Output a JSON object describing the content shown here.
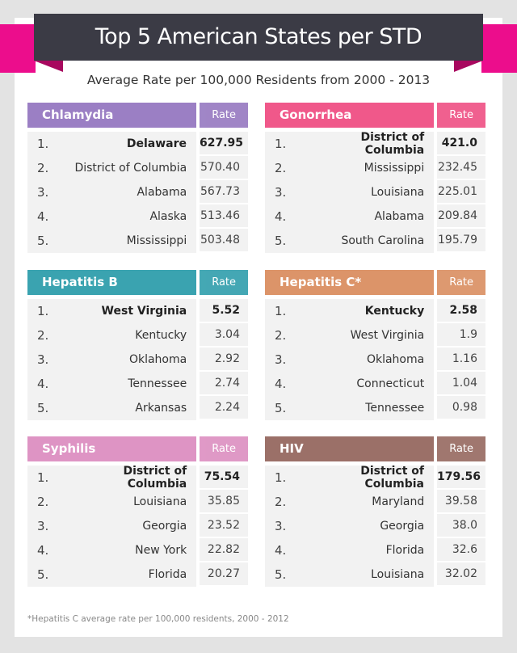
{
  "title": "Top 5 American States per STD",
  "subtitle": "Average Rate per 100,000 Residents from 2000 - 2013",
  "footnote": "*Hepatitis C average rate per 100,000 residents, 2000 - 2012",
  "colors": {
    "banner": "#3b3b45",
    "ribbon": "#ec0d8c",
    "row_bg": "#f2f2f2"
  },
  "chart_data": {
    "type": "table",
    "title": "Top 5 American States per STD",
    "subtitle": "Average Rate per 100,000 Residents from 2000 - 2013",
    "tables": [
      {
        "name": "Chlamydia",
        "rate_label": "Rate",
        "color": "#9b7fc4",
        "rows": [
          {
            "rank": "1.",
            "state": "Delaware",
            "rate": "627.95"
          },
          {
            "rank": "2.",
            "state": "District of Columbia",
            "rate": "570.40"
          },
          {
            "rank": "3.",
            "state": "Alabama",
            "rate": "567.73"
          },
          {
            "rank": "4.",
            "state": "Alaska",
            "rate": "513.46"
          },
          {
            "rank": "5.",
            "state": "Mississippi",
            "rate": "503.48"
          }
        ]
      },
      {
        "name": "Gonorrhea",
        "rate_label": "Rate",
        "color": "#f0588a",
        "rows": [
          {
            "rank": "1.",
            "state": "District of Columbia",
            "rate": "421.0"
          },
          {
            "rank": "2.",
            "state": "Mississippi",
            "rate": "232.45"
          },
          {
            "rank": "3.",
            "state": "Louisiana",
            "rate": "225.01"
          },
          {
            "rank": "4.",
            "state": "Alabama",
            "rate": "209.84"
          },
          {
            "rank": "5.",
            "state": "South Carolina",
            "rate": "195.79"
          }
        ]
      },
      {
        "name": "Hepatitis B",
        "rate_label": "Rate",
        "color": "#3aa3b0",
        "rows": [
          {
            "rank": "1.",
            "state": "West Virginia",
            "rate": "5.52"
          },
          {
            "rank": "2.",
            "state": "Kentucky",
            "rate": "3.04"
          },
          {
            "rank": "3.",
            "state": "Oklahoma",
            "rate": "2.92"
          },
          {
            "rank": "4.",
            "state": "Tennessee",
            "rate": "2.74"
          },
          {
            "rank": "5.",
            "state": "Arkansas",
            "rate": "2.24"
          }
        ]
      },
      {
        "name": "Hepatitis C*",
        "rate_label": "Rate",
        "color": "#dc9469",
        "rows": [
          {
            "rank": "1.",
            "state": "Kentucky",
            "rate": "2.58"
          },
          {
            "rank": "2.",
            "state": "West Virginia",
            "rate": "1.9"
          },
          {
            "rank": "3.",
            "state": "Oklahoma",
            "rate": "1.16"
          },
          {
            "rank": "4.",
            "state": "Connecticut",
            "rate": "1.04"
          },
          {
            "rank": "5.",
            "state": "Tennessee",
            "rate": "0.98"
          }
        ]
      },
      {
        "name": "Syphilis",
        "rate_label": "Rate",
        "color": "#de94c4",
        "rows": [
          {
            "rank": "1.",
            "state": "District of Columbia",
            "rate": "75.54"
          },
          {
            "rank": "2.",
            "state": "Louisiana",
            "rate": "35.85"
          },
          {
            "rank": "3.",
            "state": "Georgia",
            "rate": "23.52"
          },
          {
            "rank": "4.",
            "state": "New York",
            "rate": "22.82"
          },
          {
            "rank": "5.",
            "state": "Florida",
            "rate": "20.27"
          }
        ]
      },
      {
        "name": "HIV",
        "rate_label": "Rate",
        "color": "#9b7068",
        "rows": [
          {
            "rank": "1.",
            "state": "District of Columbia",
            "rate": "179.56"
          },
          {
            "rank": "2.",
            "state": "Maryland",
            "rate": "39.58"
          },
          {
            "rank": "3.",
            "state": "Georgia",
            "rate": "38.0"
          },
          {
            "rank": "4.",
            "state": "Florida",
            "rate": "32.6"
          },
          {
            "rank": "5.",
            "state": "Louisiana",
            "rate": "32.02"
          }
        ]
      }
    ]
  }
}
